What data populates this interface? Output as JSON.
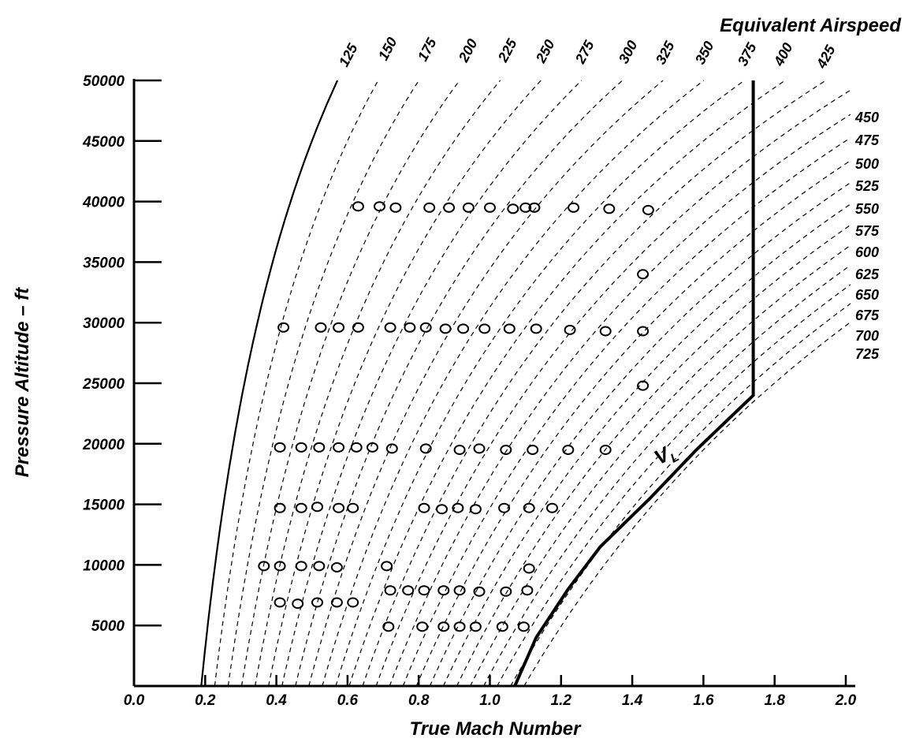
{
  "chart_data": {
    "type": "scatter",
    "title": "",
    "xlabel": "True Mach Number",
    "ylabel": "Pressure Altitude – ft",
    "xlim": [
      0.0,
      2.0
    ],
    "ylim": [
      0,
      50000
    ],
    "x_ticks": [
      "0.0",
      "0.2",
      "0.4",
      "0.6",
      "0.8",
      "1.0",
      "1.2",
      "1.4",
      "1.6",
      "1.8",
      "2.0"
    ],
    "y_ticks": [
      "5000",
      "10000",
      "15000",
      "20000",
      "25000",
      "30000",
      "35000",
      "40000",
      "45000",
      "50000"
    ],
    "grid": false,
    "eas_title": "Equivalent Airspeed",
    "eas_labels": [
      "125",
      "150",
      "175",
      "200",
      "225",
      "250",
      "275",
      "300",
      "325",
      "350",
      "375",
      "400",
      "425",
      "450",
      "475",
      "500",
      "525",
      "550",
      "575",
      "600",
      "625",
      "650",
      "675",
      "700",
      "725"
    ],
    "limit_label": "V",
    "limit_label_sub": "L",
    "limit_boundary": [
      {
        "mach": 1.07,
        "alt": 0
      },
      {
        "mach": 1.13,
        "alt": 4000
      },
      {
        "mach": 1.22,
        "alt": 8000
      },
      {
        "mach": 1.31,
        "alt": 11500
      },
      {
        "mach": 1.45,
        "alt": 15500
      },
      {
        "mach": 1.58,
        "alt": 19500
      },
      {
        "mach": 1.74,
        "alt": 24000
      },
      {
        "mach": 1.74,
        "alt": 50000
      }
    ],
    "series": [
      {
        "points": [
          {
            "x": 0.63,
            "y": 39600
          },
          {
            "x": 0.69,
            "y": 39600
          },
          {
            "x": 0.735,
            "y": 39500
          },
          {
            "x": 0.83,
            "y": 39500
          },
          {
            "x": 0.885,
            "y": 39500
          },
          {
            "x": 0.94,
            "y": 39500
          },
          {
            "x": 1.0,
            "y": 39500
          },
          {
            "x": 1.065,
            "y": 39400
          },
          {
            "x": 1.1,
            "y": 39500
          },
          {
            "x": 1.125,
            "y": 39500
          },
          {
            "x": 1.235,
            "y": 39500
          },
          {
            "x": 1.335,
            "y": 39400
          },
          {
            "x": 1.445,
            "y": 39300
          },
          {
            "x": 1.43,
            "y": 34000
          },
          {
            "x": 0.42,
            "y": 29600
          },
          {
            "x": 0.525,
            "y": 29600
          },
          {
            "x": 0.575,
            "y": 29600
          },
          {
            "x": 0.63,
            "y": 29600
          },
          {
            "x": 0.72,
            "y": 29600
          },
          {
            "x": 0.775,
            "y": 29600
          },
          {
            "x": 0.82,
            "y": 29600
          },
          {
            "x": 0.875,
            "y": 29500
          },
          {
            "x": 0.925,
            "y": 29500
          },
          {
            "x": 0.985,
            "y": 29500
          },
          {
            "x": 1.055,
            "y": 29500
          },
          {
            "x": 1.13,
            "y": 29500
          },
          {
            "x": 1.225,
            "y": 29400
          },
          {
            "x": 1.325,
            "y": 29300
          },
          {
            "x": 1.43,
            "y": 29300
          },
          {
            "x": 1.43,
            "y": 24800
          },
          {
            "x": 0.41,
            "y": 19700
          },
          {
            "x": 0.47,
            "y": 19700
          },
          {
            "x": 0.52,
            "y": 19700
          },
          {
            "x": 0.575,
            "y": 19700
          },
          {
            "x": 0.625,
            "y": 19700
          },
          {
            "x": 0.67,
            "y": 19700
          },
          {
            "x": 0.725,
            "y": 19600
          },
          {
            "x": 0.82,
            "y": 19600
          },
          {
            "x": 0.915,
            "y": 19500
          },
          {
            "x": 0.97,
            "y": 19600
          },
          {
            "x": 1.045,
            "y": 19500
          },
          {
            "x": 1.12,
            "y": 19500
          },
          {
            "x": 1.22,
            "y": 19500
          },
          {
            "x": 1.325,
            "y": 19500
          },
          {
            "x": 0.41,
            "y": 14700
          },
          {
            "x": 0.47,
            "y": 14700
          },
          {
            "x": 0.515,
            "y": 14800
          },
          {
            "x": 0.575,
            "y": 14700
          },
          {
            "x": 0.615,
            "y": 14700
          },
          {
            "x": 0.815,
            "y": 14700
          },
          {
            "x": 0.865,
            "y": 14600
          },
          {
            "x": 0.91,
            "y": 14700
          },
          {
            "x": 0.96,
            "y": 14600
          },
          {
            "x": 1.04,
            "y": 14700
          },
          {
            "x": 1.11,
            "y": 14700
          },
          {
            "x": 1.175,
            "y": 14700
          },
          {
            "x": 0.365,
            "y": 9900
          },
          {
            "x": 0.41,
            "y": 9900
          },
          {
            "x": 0.47,
            "y": 9900
          },
          {
            "x": 0.52,
            "y": 9900
          },
          {
            "x": 0.57,
            "y": 9800
          },
          {
            "x": 0.71,
            "y": 9900
          },
          {
            "x": 1.11,
            "y": 9700
          },
          {
            "x": 0.72,
            "y": 7900
          },
          {
            "x": 0.77,
            "y": 7900
          },
          {
            "x": 0.815,
            "y": 7900
          },
          {
            "x": 0.87,
            "y": 7900
          },
          {
            "x": 0.915,
            "y": 7900
          },
          {
            "x": 0.97,
            "y": 7800
          },
          {
            "x": 1.045,
            "y": 7800
          },
          {
            "x": 1.105,
            "y": 7900
          },
          {
            "x": 0.41,
            "y": 6900
          },
          {
            "x": 0.46,
            "y": 6800
          },
          {
            "x": 0.515,
            "y": 6900
          },
          {
            "x": 0.57,
            "y": 6900
          },
          {
            "x": 0.615,
            "y": 6900
          },
          {
            "x": 0.715,
            "y": 4900
          },
          {
            "x": 0.81,
            "y": 4900
          },
          {
            "x": 0.87,
            "y": 4900
          },
          {
            "x": 0.915,
            "y": 4900
          },
          {
            "x": 0.96,
            "y": 4900
          },
          {
            "x": 1.035,
            "y": 4900
          },
          {
            "x": 1.095,
            "y": 4900
          }
        ]
      }
    ]
  }
}
